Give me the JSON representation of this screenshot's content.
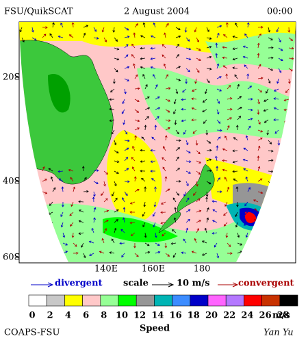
{
  "header": {
    "title": "FSU/QuikSCAT",
    "date": "2 August 2004",
    "time": "00:00"
  },
  "map": {
    "lat_labels": [
      "20S",
      "40S",
      "60S"
    ],
    "lon_labels": [
      "140E",
      "160E",
      "180"
    ]
  },
  "legend": {
    "divergent": "divergent",
    "scale": "scale",
    "scale_value": "10 m/s",
    "convergent": "convergent"
  },
  "colorbar": {
    "colors": [
      "#ffffff",
      "#c8c8c8",
      "#ffff00",
      "#ffc8c8",
      "#96ff96",
      "#00ff00",
      "#969696",
      "#00b4b4",
      "#3c8cff",
      "#0000c8",
      "#ff64ff",
      "#b478ff",
      "#ff0000",
      "#c83200",
      "#000000"
    ],
    "labels": [
      0,
      2,
      4,
      6,
      8,
      10,
      12,
      14,
      16,
      18,
      20,
      22,
      24,
      26,
      28
    ],
    "unit": "m/s",
    "title": "Speed"
  },
  "footer": {
    "left": "COAPS-FSU",
    "right": "Yan Yu"
  }
}
